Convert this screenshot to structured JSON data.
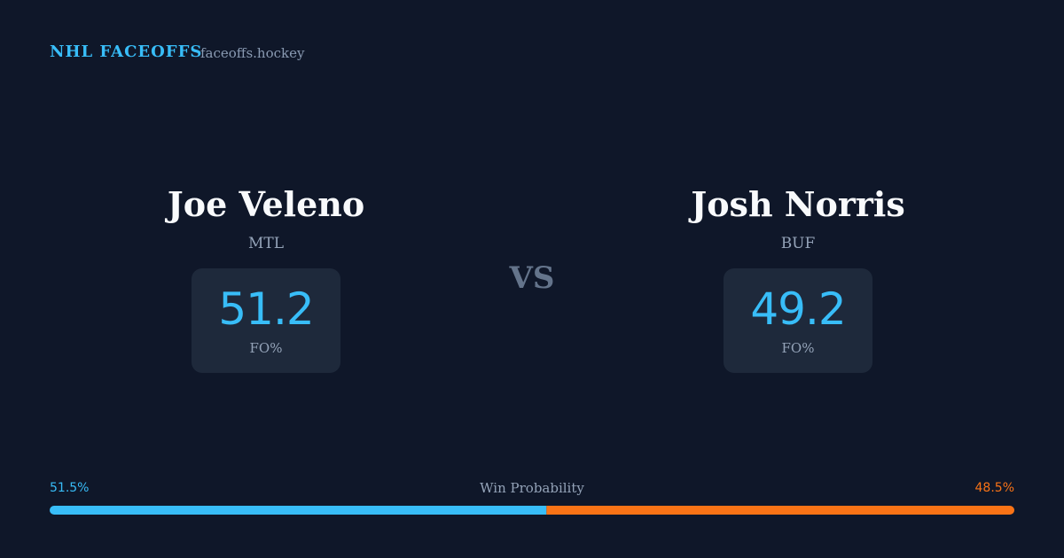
{
  "header": {
    "title": "NHL FACEOFFS",
    "site": "faceoffs.hockey"
  },
  "players": [
    {
      "name": "Joe Veleno",
      "team": "MTL",
      "stat": 51.2,
      "stat_label": "FO%"
    },
    {
      "name": "Josh Norris",
      "team": "BUF",
      "stat": 49.2,
      "stat_label": "FO%"
    }
  ],
  "versus": "VS",
  "win_probability": {
    "title": "Win Probability",
    "values": [
      51.5,
      48.5
    ],
    "value_labels": [
      "51.5%",
      "48.5%"
    ],
    "colors": [
      "#38bdf8",
      "#f97316"
    ]
  }
}
